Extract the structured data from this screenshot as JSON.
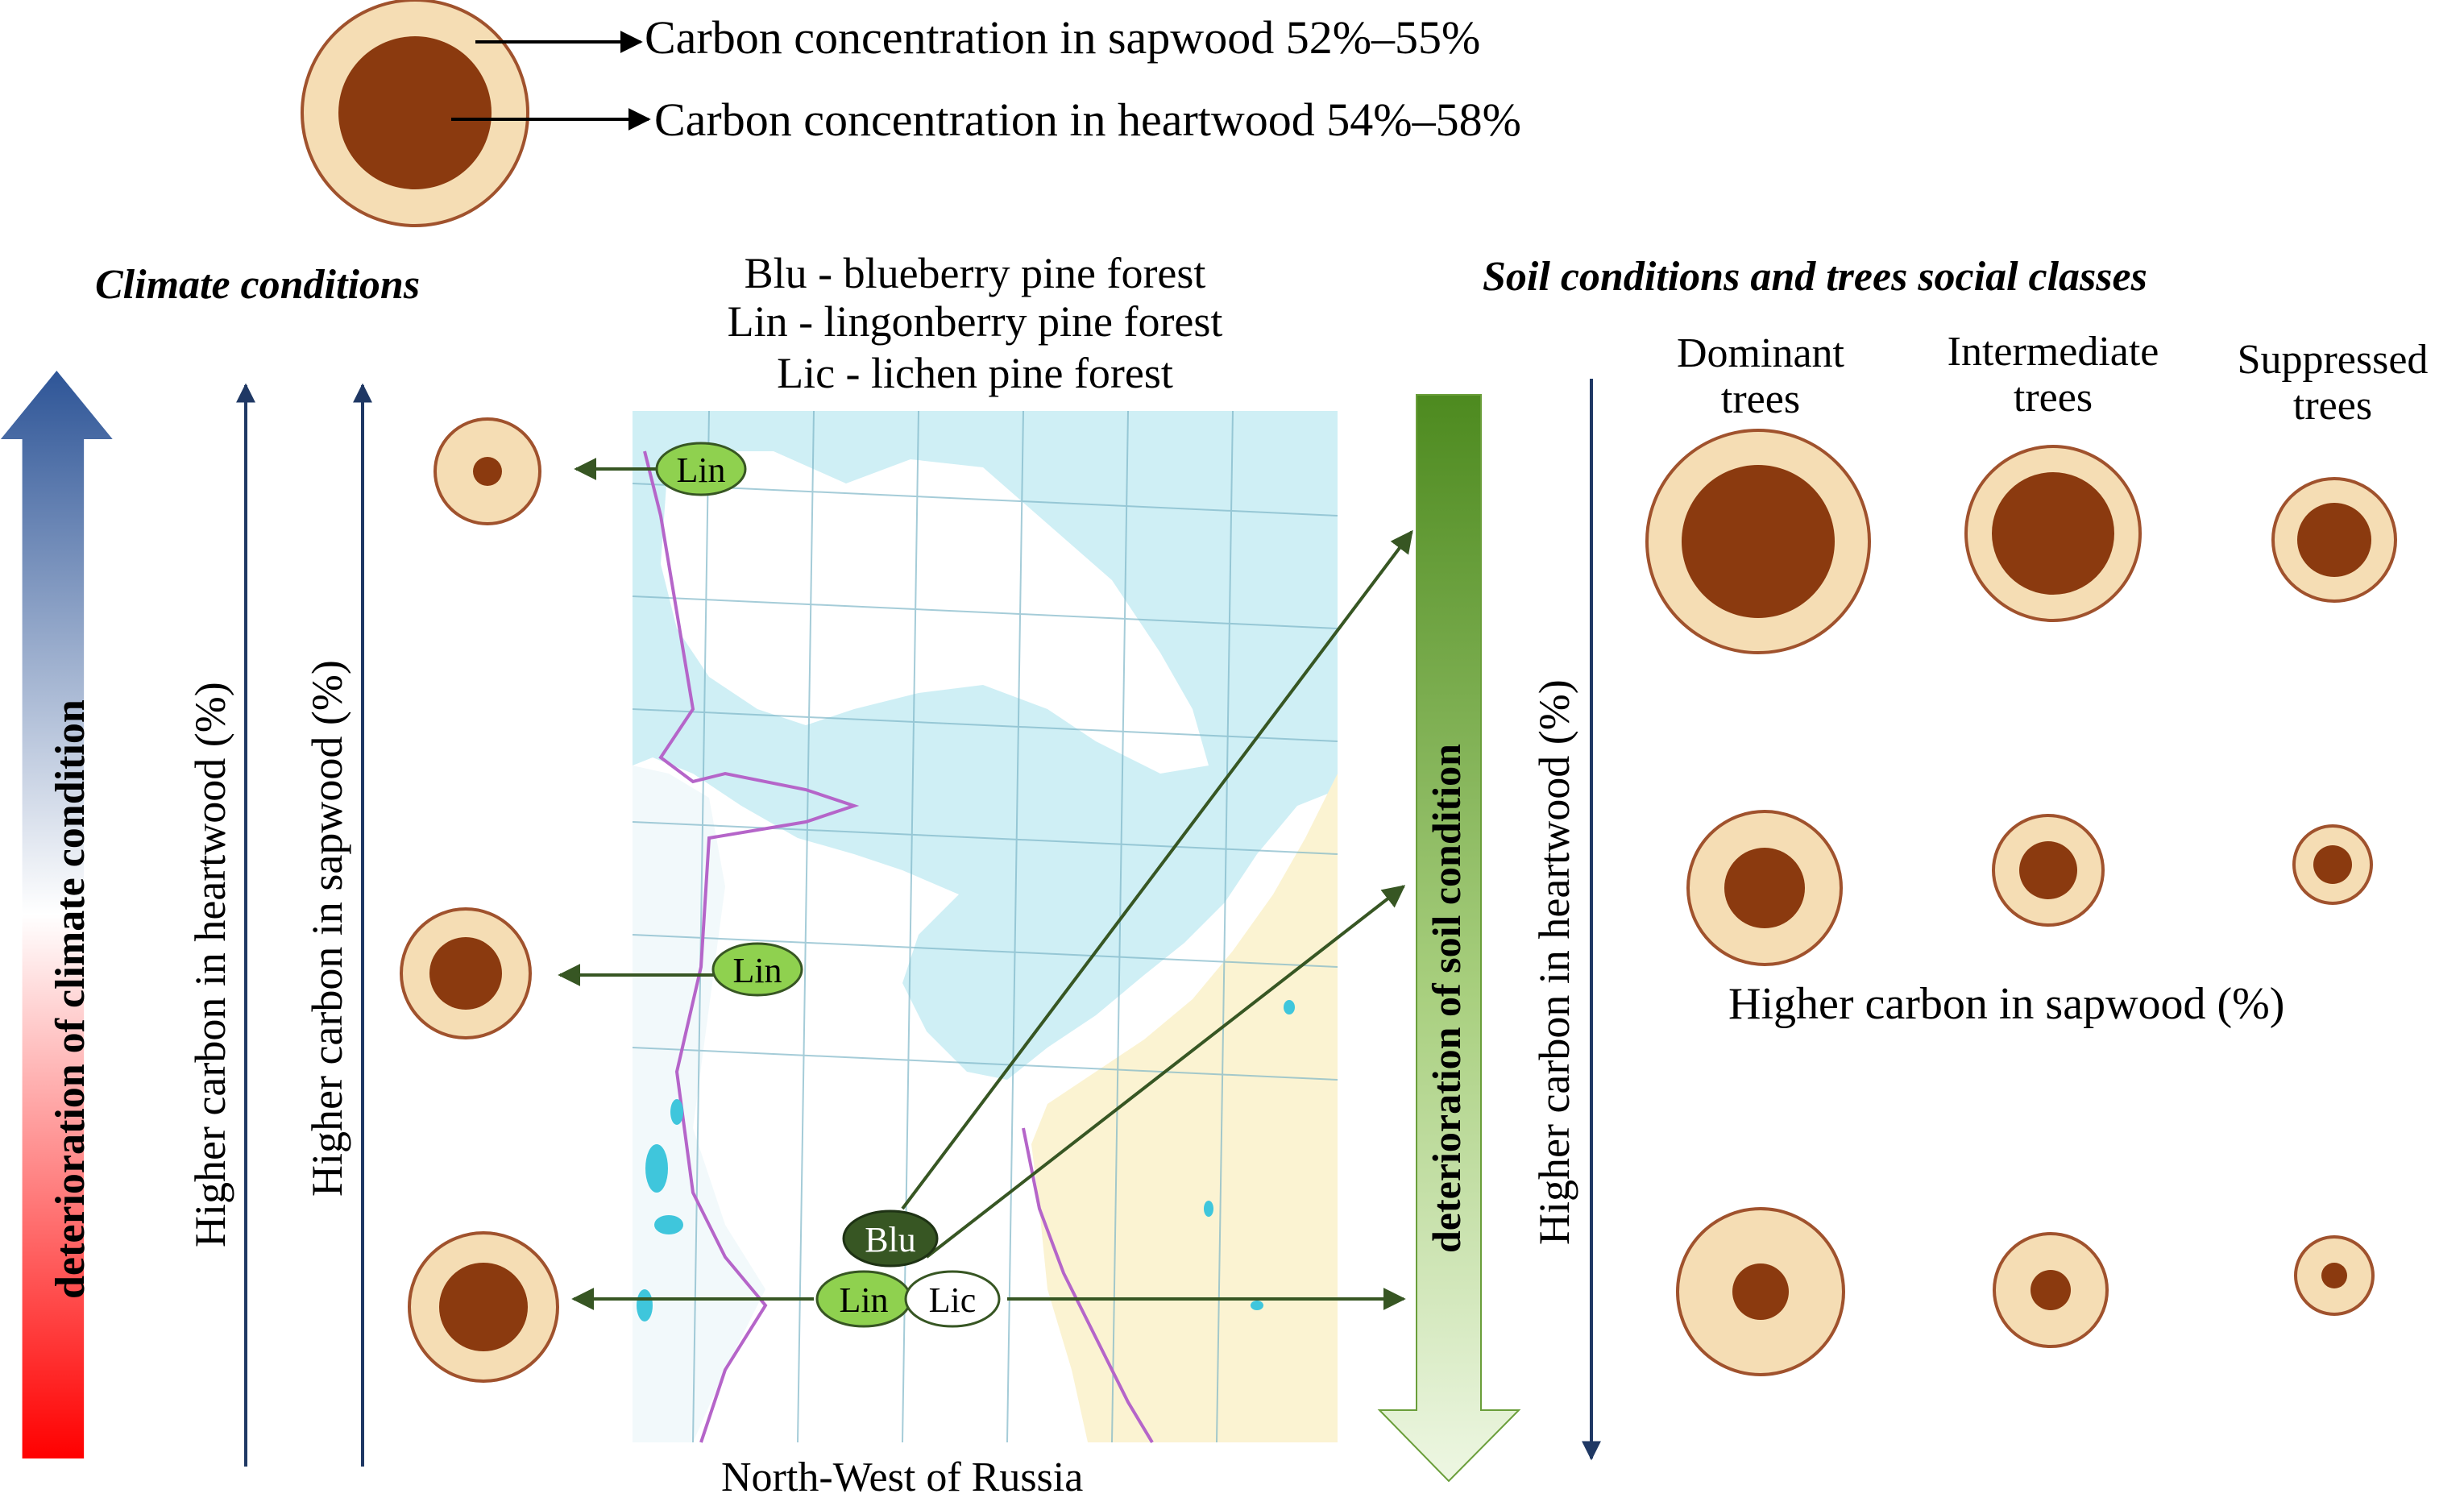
{
  "legend": {
    "sapwood_text": "Carbon concentration in sapwood 52%–55%",
    "heartwood_text": "Carbon concentration in heartwood 54%–58%"
  },
  "climate": {
    "title": "Climate conditions",
    "arrow_label": "deterioration of climate condition",
    "heartwood_axis": "Higher carbon in heartwood (%)",
    "sapwood_axis": "Higher carbon in sapwood (%)"
  },
  "forest_types": {
    "blu": "Blu - blueberry pine forest",
    "lin": "Lin - lingonberry pine forest",
    "lic": "Lic - lichen pine forest"
  },
  "map": {
    "caption": "North-West of Russia",
    "markers": {
      "lin_top": "Lin",
      "lin_middle": "Lin",
      "blu": "Blu",
      "lin_bottom": "Lin",
      "lic": "Lic"
    }
  },
  "soil": {
    "title": "Soil conditions and trees social classes",
    "arrow_label": "deterioration  of soil condition",
    "heartwood_axis": "Higher carbon in heartwood (%)",
    "sapwood_label": "Higher carbon in sapwood (%)",
    "columns": [
      "Dominant trees",
      "Intermediate trees",
      "Suppressed trees"
    ],
    "column_lines": [
      [
        "Dominant",
        "trees"
      ],
      [
        "Intermediate",
        "trees"
      ],
      [
        "Suppressed",
        "trees"
      ]
    ]
  },
  "colors": {
    "sapwood": "#f5ddb4",
    "heartwood": "#8b3a0f",
    "ring_outline": "#a0522d",
    "marker_green": "#8fd14f",
    "marker_dark": "#375623",
    "arrow_green": "#375623",
    "axis_navy": "#1f3864",
    "sea": "#cfeff5",
    "land": "#fbf3d2"
  }
}
